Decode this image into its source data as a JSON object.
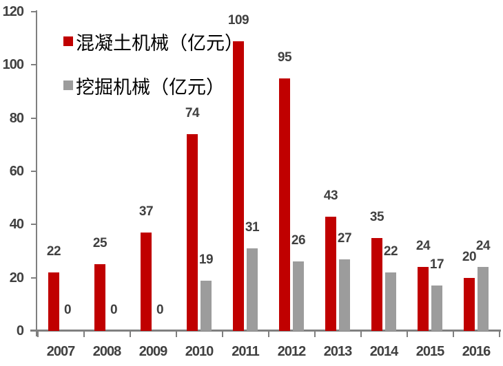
{
  "chart_data": {
    "type": "bar",
    "categories": [
      "2007",
      "2008",
      "2009",
      "2010",
      "2011",
      "2012",
      "2013",
      "2014",
      "2015",
      "2016"
    ],
    "series": [
      {
        "key": "concrete-machinery",
        "name": "混凝土机械（亿元）",
        "color": "#c00000",
        "values": [
          22,
          25,
          37,
          74,
          109,
          95,
          43,
          35,
          24,
          20
        ]
      },
      {
        "key": "excavator-machinery",
        "name": "挖掘机械（亿元）",
        "color": "#9c9c9c",
        "values": [
          0,
          0,
          0,
          19,
          31,
          26,
          27,
          22,
          17,
          24
        ]
      }
    ],
    "title": "",
    "xlabel": "",
    "ylabel": "",
    "ylim": [
      0,
      120
    ],
    "yticks": [
      0,
      20,
      40,
      60,
      80,
      100,
      120
    ],
    "grid": false,
    "data_labels": true,
    "legend_position": "top-left"
  },
  "colors": {
    "series_red": "#c00000",
    "series_gray": "#9c9c9c",
    "value_label_text": "#404040",
    "axis_tick_label_text": "#404040",
    "axis_line": "#7f7f7f",
    "legend_text": "#000000",
    "background": "#ffffff"
  }
}
